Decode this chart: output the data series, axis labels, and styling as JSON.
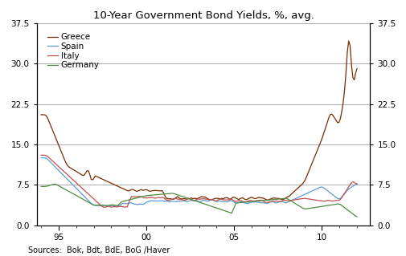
{
  "title": "10-Year Government Bond Yields, %, avg.",
  "source_text": "Sources:  Bok, Bdt, BdE, BoG /Haver",
  "ylim": [
    0.0,
    37.5
  ],
  "yticks": [
    0.0,
    7.5,
    15.0,
    22.5,
    30.0,
    37.5
  ],
  "xtick_positions": [
    1995,
    2000,
    2005,
    2010
  ],
  "xtick_labels": [
    "95",
    "00",
    "05",
    "10"
  ],
  "xlim": [
    1993.75,
    2012.75
  ],
  "colors": {
    "Greece": "#7B2A00",
    "Spain": "#5B9BD5",
    "Italy": "#C0504D",
    "Germany": "#4E8B3F"
  },
  "background_color": "#FFFFFF",
  "grid_color": "#888888",
  "title_fontsize": 9.5,
  "tick_fontsize": 7.5,
  "legend_fontsize": 7.5,
  "source_fontsize": 7.0,
  "line_width": 0.9
}
